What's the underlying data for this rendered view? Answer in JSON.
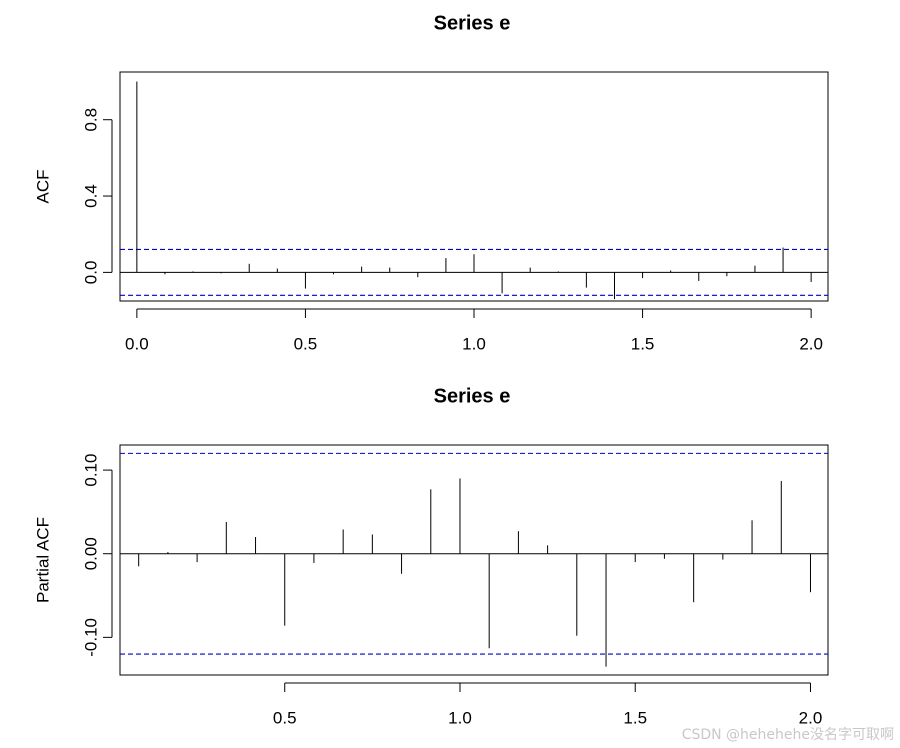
{
  "watermark": "CSDN @hehehehe没名字可取啊",
  "chart_data": [
    {
      "type": "bar",
      "subtype": "acf",
      "title": "Series  e",
      "xlabel": "",
      "ylabel": "ACF",
      "xlim": [
        -0.05,
        2.05
      ],
      "ylim": [
        -0.15,
        1.05
      ],
      "x_ticks": [
        "0.0",
        "0.5",
        "1.0",
        "1.5",
        "2.0"
      ],
      "x_tick_values": [
        0.0,
        0.5,
        1.0,
        1.5,
        2.0
      ],
      "y_ticks": [
        "0.0",
        "0.4",
        "0.8"
      ],
      "y_tick_values": [
        0.0,
        0.4,
        0.8
      ],
      "confidence_bounds": [
        0.12,
        -0.12
      ],
      "bound_color": "#0000cc",
      "lags": [
        0.0,
        0.0833,
        0.1667,
        0.25,
        0.3333,
        0.4167,
        0.5,
        0.5833,
        0.6667,
        0.75,
        0.8333,
        0.9167,
        1.0,
        1.0833,
        1.1667,
        1.25,
        1.3333,
        1.4167,
        1.5,
        1.5833,
        1.6667,
        1.75,
        1.8333,
        1.9167,
        2.0
      ],
      "values": [
        1.0,
        -0.01,
        0.005,
        -0.005,
        0.045,
        0.02,
        -0.085,
        -0.01,
        0.03,
        0.025,
        -0.025,
        0.075,
        0.095,
        -0.11,
        0.025,
        0.005,
        -0.08,
        -0.14,
        -0.03,
        0.01,
        -0.045,
        -0.02,
        0.035,
        0.13,
        -0.05
      ]
    },
    {
      "type": "bar",
      "subtype": "pacf",
      "title": "Series  e",
      "xlabel": "",
      "ylabel": "Partial ACF",
      "xlim": [
        0.03,
        2.05
      ],
      "ylim": [
        -0.145,
        0.13
      ],
      "x_ticks": [
        "0.5",
        "1.0",
        "1.5",
        "2.0"
      ],
      "x_tick_values": [
        0.5,
        1.0,
        1.5,
        2.0
      ],
      "y_ticks": [
        "-0.10",
        "0.00",
        "0.10"
      ],
      "y_tick_values": [
        -0.1,
        0.0,
        0.1
      ],
      "confidence_bounds": [
        0.12,
        -0.12
      ],
      "bound_color": "#0000cc",
      "lags": [
        0.0833,
        0.1667,
        0.25,
        0.3333,
        0.4167,
        0.5,
        0.5833,
        0.6667,
        0.75,
        0.8333,
        0.9167,
        1.0,
        1.0833,
        1.1667,
        1.25,
        1.3333,
        1.4167,
        1.5,
        1.5833,
        1.6667,
        1.75,
        1.8333,
        1.9167,
        2.0
      ],
      "values": [
        -0.015,
        0.002,
        -0.01,
        0.038,
        0.02,
        -0.086,
        -0.011,
        0.029,
        0.023,
        -0.024,
        0.077,
        0.09,
        -0.113,
        0.027,
        0.01,
        -0.098,
        -0.135,
        -0.01,
        -0.006,
        -0.058,
        -0.007,
        0.04,
        0.087,
        -0.046
      ]
    }
  ]
}
